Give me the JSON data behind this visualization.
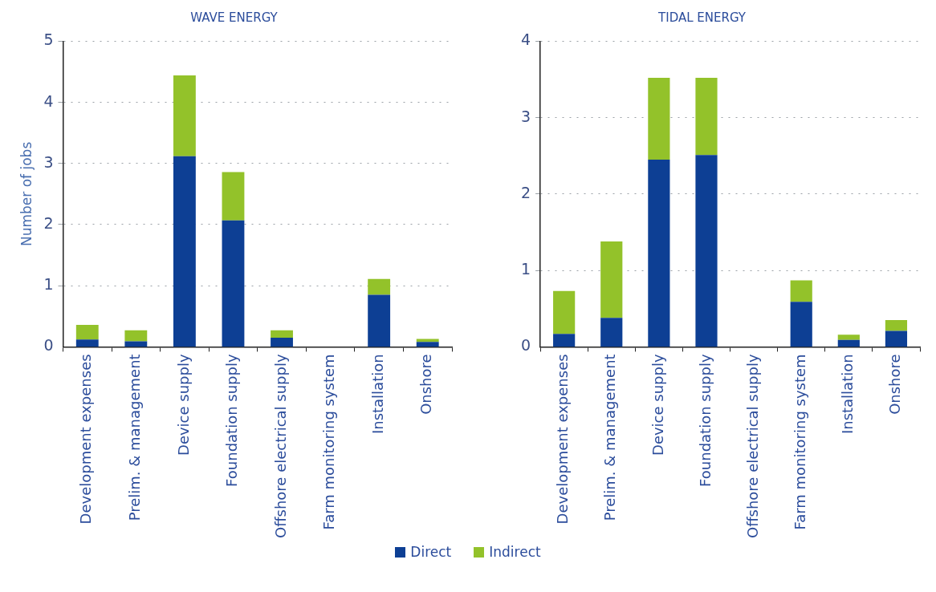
{
  "chart_data": [
    {
      "type": "bar",
      "title": "WAVE ENERGY",
      "ylabel": "Number of jobs",
      "categories": [
        "Development expenses",
        "Prelim. & management",
        "Device supply",
        "Foundation supply",
        "Offshore electrical supply",
        "Farm monitoring system",
        "Installation",
        "Onshore"
      ],
      "stacked": true,
      "ylim": [
        0,
        5
      ],
      "yticks": [
        0,
        1,
        2,
        3,
        4,
        5
      ],
      "grid": "y",
      "legend": "bottom",
      "series": [
        {
          "name": "Direct",
          "color": "#0d3f94",
          "values": [
            0.12,
            0.09,
            3.12,
            2.07,
            0.15,
            0,
            0.85,
            0.08
          ]
        },
        {
          "name": "Indirect",
          "color": "#93c22a",
          "values": [
            0.24,
            0.18,
            1.32,
            0.79,
            0.12,
            0,
            0.26,
            0.05
          ]
        }
      ]
    },
    {
      "type": "bar",
      "title": "TIDAL ENERGY",
      "categories": [
        "Development expenses",
        "Prelim. & management",
        "Device supply",
        "Foundation supply",
        "Offshore electrical supply",
        "Farm monitoring system",
        "Installation",
        "Onshore"
      ],
      "stacked": true,
      "ylim": [
        0,
        4
      ],
      "yticks": [
        0,
        1,
        2,
        3,
        4
      ],
      "grid": "y",
      "series": [
        {
          "color": "#0d3f94",
          "values": [
            0.17,
            0.38,
            2.45,
            2.51,
            0,
            0.59,
            0.09,
            0.21
          ]
        },
        {
          "color": "#93c22a",
          "values": [
            0.56,
            1.0,
            1.07,
            1.01,
            0,
            0.28,
            0.07,
            0.14
          ]
        }
      ]
    }
  ]
}
